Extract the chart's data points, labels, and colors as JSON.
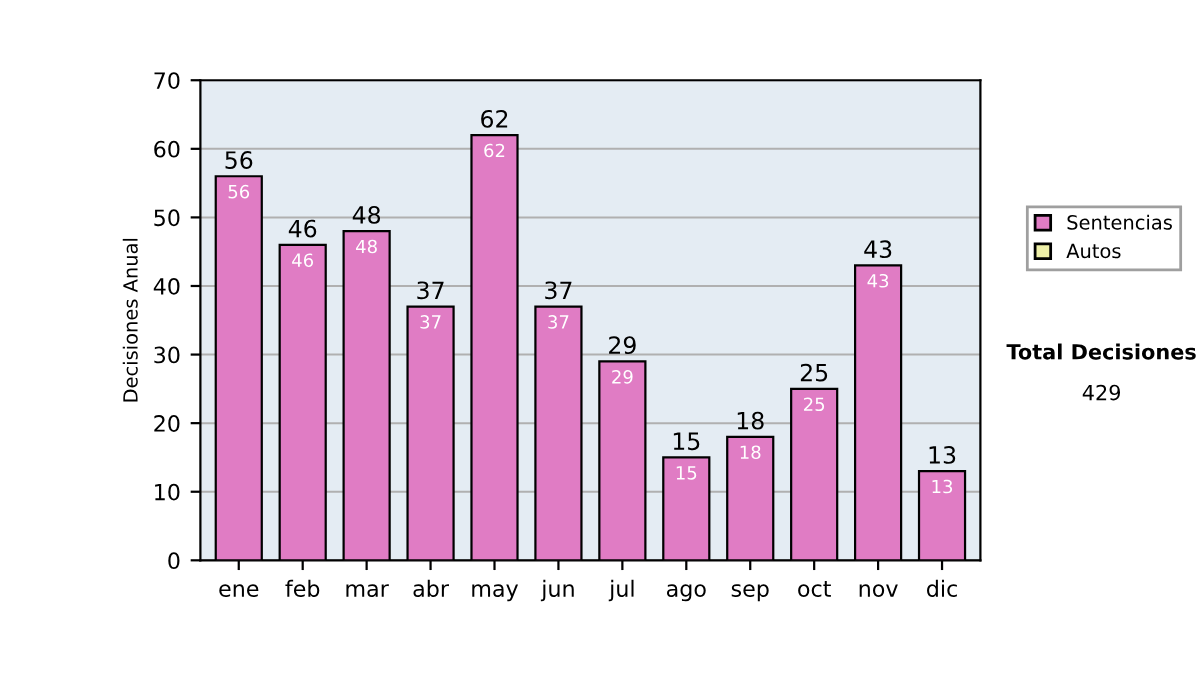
{
  "chart_data": {
    "type": "bar",
    "ylabel": "Decisiones Anual",
    "categories": [
      "ene",
      "feb",
      "mar",
      "abr",
      "may",
      "jun",
      "jul",
      "ago",
      "sep",
      "oct",
      "nov",
      "dic"
    ],
    "series": [
      {
        "name": "Sentencias",
        "color": "#e07cc4",
        "values": [
          56,
          46,
          48,
          37,
          62,
          37,
          29,
          15,
          18,
          25,
          43,
          13
        ],
        "value_labels": [
          "56",
          "46",
          "48",
          "37",
          "62",
          "37",
          "29",
          "15",
          "18",
          "25",
          "43",
          "13"
        ]
      },
      {
        "name": "Autos",
        "color": "#eef0a8",
        "values": [
          null,
          null,
          null,
          null,
          null,
          null,
          null,
          null,
          null,
          null,
          null,
          null
        ]
      }
    ],
    "ylim": [
      0,
      70
    ],
    "yticks": [
      0,
      10,
      20,
      30,
      40,
      50,
      60,
      70
    ],
    "grid": "y",
    "legend": "right",
    "annotations": [
      "Total Decisiones",
      "429",
      {
        "text": "56",
        "x": "ene",
        "y": 56
      },
      {
        "text": "46",
        "x": "feb",
        "y": 46
      },
      {
        "text": "48",
        "x": "mar",
        "y": 48
      },
      {
        "text": "37",
        "x": "abr",
        "y": 37
      },
      {
        "text": "62",
        "x": "may",
        "y": 62
      },
      {
        "text": "37",
        "x": "jun",
        "y": 37
      },
      {
        "text": "29",
        "x": "jul",
        "y": 29
      },
      {
        "text": "15",
        "x": "ago",
        "y": 15
      },
      {
        "text": "18",
        "x": "sep",
        "y": 18
      },
      {
        "text": "25",
        "x": "oct",
        "y": 25
      },
      {
        "text": "43",
        "x": "nov",
        "y": 43
      },
      {
        "text": "13",
        "x": "dic",
        "y": 13
      }
    ]
  }
}
